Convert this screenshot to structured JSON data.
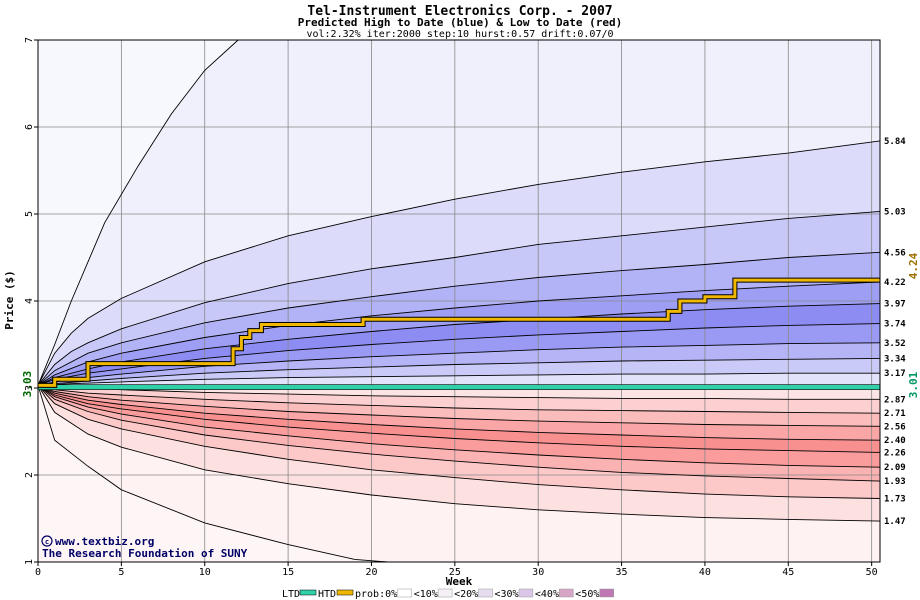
{
  "chart_data": {
    "type": "area",
    "title": "Tel-Instrument Electronics Corp. - 2007",
    "subtitle": "Predicted High to Date (blue) &  Low to Date (red)",
    "params": "vol:2.32% iter:2000 step:10 hurst:0.57 drift:0.07/0",
    "xlabel": "Week",
    "ylabel": "Price ($)",
    "xlim": [
      0,
      50.5
    ],
    "ylim": [
      1,
      7
    ],
    "x_ticks": [
      0,
      5,
      10,
      15,
      20,
      25,
      30,
      35,
      40,
      45,
      50
    ],
    "y_ticks": [
      1,
      2,
      3,
      4,
      5,
      6,
      7
    ],
    "start_price": 3.03,
    "start_label": "3.03",
    "ltd_level": 3.01,
    "ltd_label": "3.01",
    "htd_current": 4.24,
    "htd_label": "4.24",
    "upper_curves": [
      {
        "end": 7.0,
        "label": null,
        "points": [
          [
            0,
            3.03
          ],
          [
            1,
            3.5
          ],
          [
            2,
            4.0
          ],
          [
            4,
            4.9
          ],
          [
            6,
            5.55
          ],
          [
            8,
            6.15
          ],
          [
            10,
            6.65
          ],
          [
            12,
            7.0
          ]
        ]
      },
      {
        "end": 5.84,
        "label": "5.84",
        "points": [
          [
            0,
            3.03
          ],
          [
            1,
            3.4
          ],
          [
            2,
            3.63
          ],
          [
            3,
            3.8
          ],
          [
            5,
            4.03
          ],
          [
            10,
            4.45
          ],
          [
            15,
            4.75
          ],
          [
            20,
            4.97
          ],
          [
            25,
            5.17
          ],
          [
            30,
            5.34
          ],
          [
            35,
            5.48
          ],
          [
            40,
            5.6
          ],
          [
            45,
            5.7
          ],
          [
            50.5,
            5.84
          ]
        ]
      },
      {
        "end": 5.03,
        "label": "5.03",
        "points": [
          [
            0,
            3.03
          ],
          [
            1,
            3.27
          ],
          [
            2,
            3.42
          ],
          [
            3,
            3.52
          ],
          [
            5,
            3.68
          ],
          [
            10,
            3.98
          ],
          [
            15,
            4.2
          ],
          [
            20,
            4.37
          ],
          [
            25,
            4.5
          ],
          [
            30,
            4.65
          ],
          [
            35,
            4.75
          ],
          [
            40,
            4.85
          ],
          [
            45,
            4.95
          ],
          [
            50.5,
            5.03
          ]
        ]
      },
      {
        "end": 4.56,
        "label": "4.56",
        "points": [
          [
            0,
            3.03
          ],
          [
            1,
            3.2
          ],
          [
            3,
            3.4
          ],
          [
            5,
            3.52
          ],
          [
            10,
            3.75
          ],
          [
            15,
            3.92
          ],
          [
            20,
            4.05
          ],
          [
            25,
            4.17
          ],
          [
            30,
            4.27
          ],
          [
            35,
            4.35
          ],
          [
            40,
            4.42
          ],
          [
            45,
            4.5
          ],
          [
            50.5,
            4.56
          ]
        ]
      },
      {
        "end": 4.22,
        "label": "4.22",
        "points": [
          [
            0,
            3.03
          ],
          [
            1,
            3.15
          ],
          [
            3,
            3.3
          ],
          [
            5,
            3.4
          ],
          [
            10,
            3.58
          ],
          [
            15,
            3.72
          ],
          [
            20,
            3.83
          ],
          [
            25,
            3.92
          ],
          [
            30,
            4.0
          ],
          [
            35,
            4.06
          ],
          [
            40,
            4.12
          ],
          [
            45,
            4.17
          ],
          [
            50.5,
            4.22
          ]
        ]
      },
      {
        "end": 3.97,
        "label": "3.97",
        "points": [
          [
            0,
            3.03
          ],
          [
            1,
            3.12
          ],
          [
            3,
            3.22
          ],
          [
            5,
            3.3
          ],
          [
            10,
            3.45
          ],
          [
            15,
            3.56
          ],
          [
            20,
            3.65
          ],
          [
            25,
            3.73
          ],
          [
            30,
            3.79
          ],
          [
            35,
            3.85
          ],
          [
            40,
            3.9
          ],
          [
            45,
            3.94
          ],
          [
            50.5,
            3.97
          ]
        ]
      },
      {
        "end": 3.74,
        "label": "3.74",
        "points": [
          [
            0,
            3.03
          ],
          [
            1,
            3.1
          ],
          [
            3,
            3.17
          ],
          [
            5,
            3.22
          ],
          [
            10,
            3.34
          ],
          [
            15,
            3.43
          ],
          [
            20,
            3.5
          ],
          [
            25,
            3.56
          ],
          [
            30,
            3.61
          ],
          [
            35,
            3.65
          ],
          [
            40,
            3.69
          ],
          [
            45,
            3.72
          ],
          [
            50.5,
            3.74
          ]
        ]
      },
      {
        "end": 3.52,
        "label": "3.52",
        "points": [
          [
            0,
            3.03
          ],
          [
            1,
            3.07
          ],
          [
            3,
            3.12
          ],
          [
            5,
            3.16
          ],
          [
            10,
            3.25
          ],
          [
            15,
            3.31
          ],
          [
            20,
            3.36
          ],
          [
            25,
            3.4
          ],
          [
            30,
            3.44
          ],
          [
            35,
            3.47
          ],
          [
            40,
            3.49
          ],
          [
            45,
            3.51
          ],
          [
            50.5,
            3.52
          ]
        ]
      },
      {
        "end": 3.34,
        "label": "3.34",
        "points": [
          [
            0,
            3.03
          ],
          [
            1,
            3.05
          ],
          [
            3,
            3.08
          ],
          [
            5,
            3.11
          ],
          [
            10,
            3.17
          ],
          [
            15,
            3.21
          ],
          [
            20,
            3.24
          ],
          [
            25,
            3.27
          ],
          [
            30,
            3.29
          ],
          [
            35,
            3.31
          ],
          [
            40,
            3.32
          ],
          [
            45,
            3.33
          ],
          [
            50.5,
            3.34
          ]
        ]
      },
      {
        "end": 3.17,
        "label": "3.17",
        "points": [
          [
            0,
            3.03
          ],
          [
            2,
            3.05
          ],
          [
            5,
            3.07
          ],
          [
            10,
            3.1
          ],
          [
            15,
            3.12
          ],
          [
            20,
            3.13
          ],
          [
            25,
            3.14
          ],
          [
            30,
            3.15
          ],
          [
            35,
            3.16
          ],
          [
            40,
            3.16
          ],
          [
            45,
            3.17
          ],
          [
            50.5,
            3.17
          ]
        ]
      }
    ],
    "lower_curves": [
      {
        "end": 2.87,
        "label": "2.87",
        "points": [
          [
            0,
            3.03
          ],
          [
            2,
            3.0
          ],
          [
            5,
            2.98
          ],
          [
            10,
            2.95
          ],
          [
            15,
            2.93
          ],
          [
            20,
            2.91
          ],
          [
            25,
            2.9
          ],
          [
            30,
            2.89
          ],
          [
            35,
            2.88
          ],
          [
            40,
            2.88
          ],
          [
            45,
            2.87
          ],
          [
            50.5,
            2.87
          ]
        ]
      },
      {
        "end": 2.71,
        "label": "2.71",
        "points": [
          [
            0,
            3.03
          ],
          [
            1,
            2.98
          ],
          [
            3,
            2.94
          ],
          [
            5,
            2.92
          ],
          [
            10,
            2.87
          ],
          [
            15,
            2.83
          ],
          [
            20,
            2.8
          ],
          [
            25,
            2.77
          ],
          [
            30,
            2.75
          ],
          [
            35,
            2.74
          ],
          [
            40,
            2.73
          ],
          [
            45,
            2.72
          ],
          [
            50.5,
            2.71
          ]
        ]
      },
      {
        "end": 2.56,
        "label": "2.56",
        "points": [
          [
            0,
            3.03
          ],
          [
            1,
            2.96
          ],
          [
            3,
            2.9
          ],
          [
            5,
            2.86
          ],
          [
            10,
            2.79
          ],
          [
            15,
            2.73
          ],
          [
            20,
            2.69
          ],
          [
            25,
            2.65
          ],
          [
            30,
            2.62
          ],
          [
            35,
            2.6
          ],
          [
            40,
            2.58
          ],
          [
            45,
            2.57
          ],
          [
            50.5,
            2.56
          ]
        ]
      },
      {
        "end": 2.4,
        "label": "2.40",
        "points": [
          [
            0,
            3.03
          ],
          [
            1,
            2.94
          ],
          [
            3,
            2.86
          ],
          [
            5,
            2.81
          ],
          [
            10,
            2.71
          ],
          [
            15,
            2.64
          ],
          [
            20,
            2.58
          ],
          [
            25,
            2.53
          ],
          [
            30,
            2.49
          ],
          [
            35,
            2.46
          ],
          [
            40,
            2.43
          ],
          [
            45,
            2.41
          ],
          [
            50.5,
            2.4
          ]
        ]
      },
      {
        "end": 2.26,
        "label": "2.26",
        "points": [
          [
            0,
            3.03
          ],
          [
            1,
            2.92
          ],
          [
            3,
            2.82
          ],
          [
            5,
            2.76
          ],
          [
            10,
            2.64
          ],
          [
            15,
            2.55
          ],
          [
            20,
            2.48
          ],
          [
            25,
            2.42
          ],
          [
            30,
            2.37
          ],
          [
            35,
            2.33
          ],
          [
            40,
            2.3
          ],
          [
            45,
            2.28
          ],
          [
            50.5,
            2.26
          ]
        ]
      },
      {
        "end": 2.09,
        "label": "2.09",
        "points": [
          [
            0,
            3.03
          ],
          [
            1,
            2.9
          ],
          [
            3,
            2.78
          ],
          [
            5,
            2.7
          ],
          [
            10,
            2.55
          ],
          [
            15,
            2.45
          ],
          [
            20,
            2.36
          ],
          [
            25,
            2.29
          ],
          [
            30,
            2.23
          ],
          [
            35,
            2.18
          ],
          [
            40,
            2.14
          ],
          [
            45,
            2.11
          ],
          [
            50.5,
            2.09
          ]
        ]
      },
      {
        "end": 1.93,
        "label": "1.93",
        "points": [
          [
            0,
            3.03
          ],
          [
            1,
            2.87
          ],
          [
            3,
            2.73
          ],
          [
            5,
            2.63
          ],
          [
            10,
            2.46
          ],
          [
            15,
            2.34
          ],
          [
            20,
            2.24
          ],
          [
            25,
            2.16
          ],
          [
            30,
            2.09
          ],
          [
            35,
            2.03
          ],
          [
            40,
            1.99
          ],
          [
            45,
            1.96
          ],
          [
            50.5,
            1.93
          ]
        ]
      },
      {
        "end": 1.73,
        "label": "1.73",
        "points": [
          [
            0,
            3.03
          ],
          [
            1,
            2.82
          ],
          [
            3,
            2.64
          ],
          [
            5,
            2.53
          ],
          [
            10,
            2.33
          ],
          [
            15,
            2.18
          ],
          [
            20,
            2.06
          ],
          [
            25,
            1.97
          ],
          [
            30,
            1.89
          ],
          [
            35,
            1.83
          ],
          [
            40,
            1.78
          ],
          [
            45,
            1.75
          ],
          [
            50.5,
            1.73
          ]
        ]
      },
      {
        "end": 1.47,
        "label": "1.47",
        "points": [
          [
            0,
            3.03
          ],
          [
            1,
            2.72
          ],
          [
            3,
            2.47
          ],
          [
            5,
            2.32
          ],
          [
            10,
            2.06
          ],
          [
            15,
            1.9
          ],
          [
            20,
            1.77
          ],
          [
            25,
            1.67
          ],
          [
            30,
            1.6
          ],
          [
            35,
            1.55
          ],
          [
            40,
            1.51
          ],
          [
            45,
            1.49
          ],
          [
            50.5,
            1.47
          ]
        ]
      },
      {
        "end": 1.0,
        "label": null,
        "points": [
          [
            0,
            3.03
          ],
          [
            1,
            2.4
          ],
          [
            3,
            2.1
          ],
          [
            5,
            1.83
          ],
          [
            10,
            1.45
          ],
          [
            15,
            1.2
          ],
          [
            19,
            1.03
          ],
          [
            21,
            1.0
          ]
        ]
      }
    ],
    "htd_path": [
      [
        0,
        3.03
      ],
      [
        1,
        3.03
      ],
      [
        1,
        3.1
      ],
      [
        3,
        3.1
      ],
      [
        3,
        3.28
      ],
      [
        11.7,
        3.28
      ],
      [
        11.7,
        3.45
      ],
      [
        12.2,
        3.45
      ],
      [
        12.2,
        3.58
      ],
      [
        12.7,
        3.58
      ],
      [
        12.7,
        3.66
      ],
      [
        13.4,
        3.66
      ],
      [
        13.4,
        3.73
      ],
      [
        19.5,
        3.73
      ],
      [
        19.5,
        3.79
      ],
      [
        37.8,
        3.79
      ],
      [
        37.8,
        3.88
      ],
      [
        38.5,
        3.88
      ],
      [
        38.5,
        4.0
      ],
      [
        40,
        4.0
      ],
      [
        40,
        4.05
      ],
      [
        41.8,
        4.05
      ],
      [
        41.8,
        4.24
      ],
      [
        50.5,
        4.24
      ]
    ],
    "upper_band_colors": [
      "#f0f0fc",
      "#dcdcfa",
      "#c8c8f8",
      "#b2b2f6",
      "#9e9ef4",
      "#8c8cf2",
      "#9a9af4",
      "#b4b4f6",
      "#cacaf8",
      "#e2e2fb"
    ],
    "lower_band_colors": [
      "#fde4e4",
      "#fcd0d0",
      "#fbbcbc",
      "#faa6a6",
      "#f99090",
      "#fa9c9c",
      "#fbb2b2",
      "#fcc8c8",
      "#fde0e0",
      "#fef2f2"
    ],
    "outer_upper_color": "#f7f7fe",
    "outer_lower_color": "#fef6f6",
    "htd_color": "#f0b800",
    "ltd_color": "#30d0a8",
    "start_label_color": "#006600",
    "htd_label_color": "#a07000",
    "ltd_label_color": "#009966"
  },
  "credits": {
    "site": "www.textbiz.org",
    "org": "The Research Foundation of SUNY"
  },
  "legend": {
    "ltd": "LTD",
    "htd": "HTD",
    "prob_items": [
      {
        "label": "prob:0%",
        "color": "#ffffff"
      },
      {
        "label": "<10%",
        "color": "#f4f0f6"
      },
      {
        "label": "<20%",
        "color": "#e6dcf0"
      },
      {
        "label": "<30%",
        "color": "#dac6e6"
      },
      {
        "label": "<40%",
        "color": "#d6a4c4"
      },
      {
        "label": "<50%",
        "color": "#c078b4"
      }
    ],
    "prob_suffix": "<"
  }
}
